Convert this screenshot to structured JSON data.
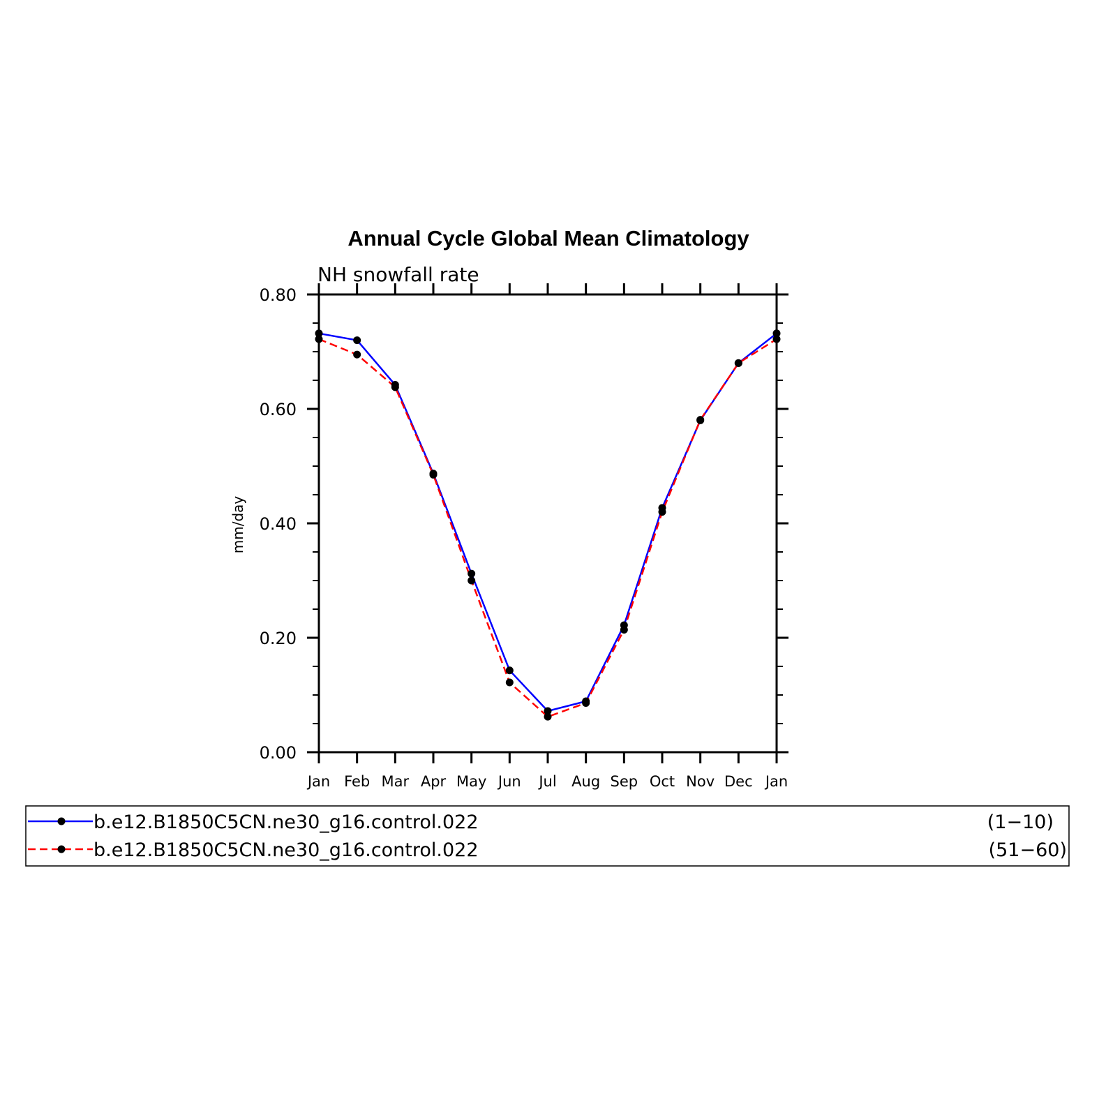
{
  "chart_data": {
    "type": "line",
    "title": "Annual Cycle Global Mean Climatology",
    "subtitle": "NH snowfall rate",
    "ylabel": "mm/day",
    "xlabel": "",
    "categories": [
      "Jan",
      "Feb",
      "Mar",
      "Apr",
      "May",
      "Jun",
      "Jul",
      "Aug",
      "Sep",
      "Oct",
      "Nov",
      "Dec",
      "Jan"
    ],
    "ylim": [
      0.0,
      0.8
    ],
    "yticks": [
      "0.00",
      "0.20",
      "0.40",
      "0.60",
      "0.80"
    ],
    "grid": false,
    "series": [
      {
        "name": "b.e12.B1850C5CN.ne30_g16.control.022",
        "years": "(1−10)",
        "color": "#0000ff",
        "style": "solid",
        "values": [
          0.732,
          0.72,
          0.642,
          0.487,
          0.312,
          0.143,
          0.072,
          0.089,
          0.222,
          0.427,
          0.58,
          0.68,
          0.732
        ]
      },
      {
        "name": "b.e12.B1850C5CN.ne30_g16.control.022",
        "years": "(51−60)",
        "color": "#ff0000",
        "style": "dashed",
        "values": [
          0.722,
          0.695,
          0.638,
          0.485,
          0.3,
          0.122,
          0.062,
          0.086,
          0.214,
          0.42,
          0.581,
          0.68,
          0.722
        ]
      }
    ],
    "legend_position": "bottom"
  }
}
